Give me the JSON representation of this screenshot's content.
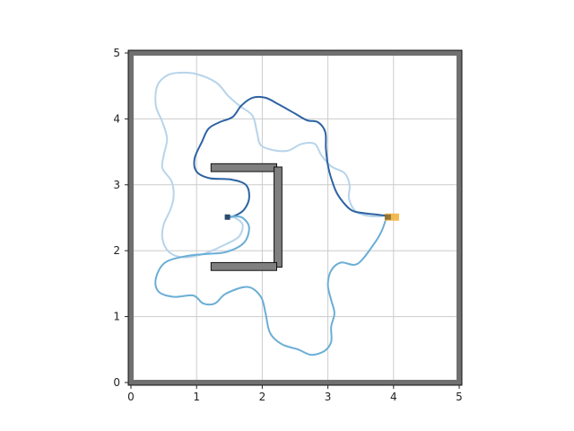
{
  "chart_data": {
    "type": "line",
    "title": "",
    "xlabel": "",
    "ylabel": "",
    "xlim": [
      0,
      5
    ],
    "ylim": [
      0,
      5
    ],
    "grid": true,
    "x_ticks": [
      "0",
      "1",
      "2",
      "3",
      "4",
      "5"
    ],
    "y_ticks": [
      "0",
      "1",
      "2",
      "3",
      "4",
      "5"
    ],
    "obstacles": [
      {
        "x0": 1.22,
        "x1": 2.22,
        "y0": 3.2,
        "y1": 3.32
      },
      {
        "x0": 2.18,
        "x1": 2.3,
        "y0": 1.75,
        "y1": 3.27
      },
      {
        "x0": 1.22,
        "x1": 2.22,
        "y0": 1.7,
        "y1": 1.82
      }
    ],
    "start": {
      "x": 3.92,
      "y": 2.51,
      "color": "#f2b33d"
    },
    "goal": {
      "x": 1.47,
      "y": 2.51,
      "color": "#2b4a6f"
    },
    "series": [
      {
        "color": "#b7d4ea",
        "points": [
          [
            3.9,
            2.53
          ],
          [
            3.7,
            2.52
          ],
          [
            3.52,
            2.55
          ],
          [
            3.4,
            2.62
          ],
          [
            3.32,
            2.8
          ],
          [
            3.33,
            3.0
          ],
          [
            3.25,
            3.18
          ],
          [
            3.05,
            3.28
          ],
          [
            2.9,
            3.45
          ],
          [
            2.8,
            3.62
          ],
          [
            2.6,
            3.62
          ],
          [
            2.4,
            3.52
          ],
          [
            2.2,
            3.52
          ],
          [
            1.98,
            3.6
          ],
          [
            1.92,
            3.8
          ],
          [
            1.85,
            4.05
          ],
          [
            1.65,
            4.2
          ],
          [
            1.48,
            4.35
          ],
          [
            1.3,
            4.55
          ],
          [
            1.0,
            4.68
          ],
          [
            0.75,
            4.7
          ],
          [
            0.55,
            4.66
          ],
          [
            0.4,
            4.5
          ],
          [
            0.38,
            4.2
          ],
          [
            0.48,
            3.95
          ],
          [
            0.55,
            3.7
          ],
          [
            0.5,
            3.45
          ],
          [
            0.48,
            3.25
          ],
          [
            0.62,
            3.05
          ],
          [
            0.65,
            2.82
          ],
          [
            0.6,
            2.62
          ],
          [
            0.5,
            2.4
          ],
          [
            0.48,
            2.18
          ],
          [
            0.58,
            1.98
          ],
          [
            0.8,
            1.9
          ],
          [
            1.1,
            1.95
          ],
          [
            1.45,
            2.1
          ],
          [
            1.65,
            2.22
          ],
          [
            1.7,
            2.4
          ],
          [
            1.58,
            2.5
          ],
          [
            1.48,
            2.51
          ]
        ]
      },
      {
        "color": "#2d63a3",
        "points": [
          [
            3.9,
            2.53
          ],
          [
            3.72,
            2.55
          ],
          [
            3.55,
            2.57
          ],
          [
            3.35,
            2.62
          ],
          [
            3.15,
            2.85
          ],
          [
            3.05,
            3.1
          ],
          [
            3.0,
            3.3
          ],
          [
            2.97,
            3.55
          ],
          [
            2.96,
            3.8
          ],
          [
            2.85,
            3.95
          ],
          [
            2.68,
            3.98
          ],
          [
            2.5,
            4.08
          ],
          [
            2.25,
            4.22
          ],
          [
            2.05,
            4.32
          ],
          [
            1.85,
            4.32
          ],
          [
            1.68,
            4.2
          ],
          [
            1.55,
            4.03
          ],
          [
            1.35,
            3.95
          ],
          [
            1.18,
            3.85
          ],
          [
            1.08,
            3.65
          ],
          [
            0.97,
            3.4
          ],
          [
            1.0,
            3.2
          ],
          [
            1.2,
            3.1
          ],
          [
            1.52,
            3.08
          ],
          [
            1.75,
            3.0
          ],
          [
            1.8,
            2.8
          ],
          [
            1.72,
            2.62
          ],
          [
            1.58,
            2.53
          ],
          [
            1.48,
            2.51
          ]
        ]
      },
      {
        "color": "#6baed6",
        "points": [
          [
            3.9,
            2.53
          ],
          [
            3.82,
            2.3
          ],
          [
            3.7,
            2.1
          ],
          [
            3.45,
            1.8
          ],
          [
            3.2,
            1.82
          ],
          [
            3.05,
            1.7
          ],
          [
            3.0,
            1.48
          ],
          [
            3.05,
            1.25
          ],
          [
            3.1,
            1.05
          ],
          [
            3.05,
            0.85
          ],
          [
            3.05,
            0.62
          ],
          [
            2.95,
            0.48
          ],
          [
            2.75,
            0.42
          ],
          [
            2.55,
            0.5
          ],
          [
            2.3,
            0.58
          ],
          [
            2.12,
            0.75
          ],
          [
            2.05,
            1.05
          ],
          [
            1.98,
            1.3
          ],
          [
            1.78,
            1.45
          ],
          [
            1.45,
            1.35
          ],
          [
            1.28,
            1.2
          ],
          [
            1.1,
            1.2
          ],
          [
            0.95,
            1.32
          ],
          [
            0.65,
            1.3
          ],
          [
            0.42,
            1.38
          ],
          [
            0.38,
            1.58
          ],
          [
            0.52,
            1.82
          ],
          [
            0.85,
            1.92
          ],
          [
            1.15,
            1.95
          ],
          [
            1.45,
            1.98
          ],
          [
            1.72,
            2.12
          ],
          [
            1.8,
            2.35
          ],
          [
            1.7,
            2.5
          ],
          [
            1.55,
            2.52
          ],
          [
            1.48,
            2.51
          ]
        ]
      }
    ]
  }
}
